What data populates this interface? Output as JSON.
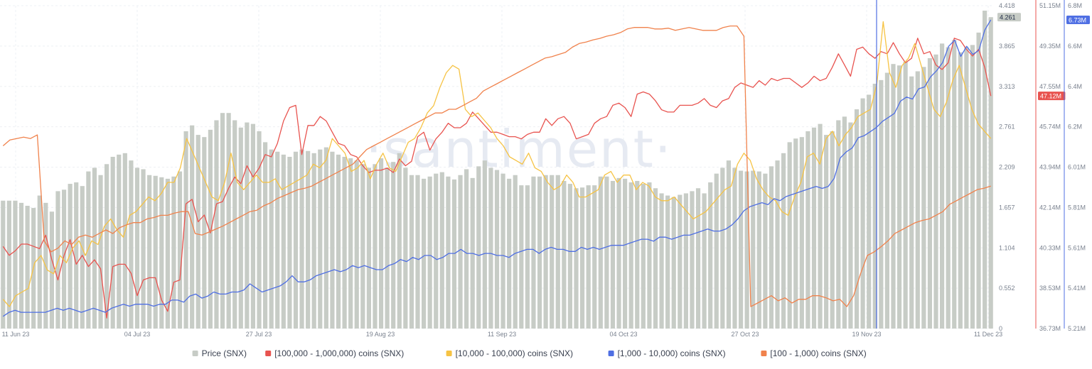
{
  "chart_data": {
    "type": "bar+line",
    "watermark": "·santiment·",
    "x_labels": [
      "11 Jun 23",
      "04 Jul 23",
      "27 Jul 23",
      "19 Aug 23",
      "11 Sep 23",
      "04 Oct 23",
      "27 Oct 23",
      "19 Nov 23",
      "11 Dec 23"
    ],
    "axes": {
      "price": {
        "min": 0,
        "max": 4.418,
        "ticks": [
          "4.418",
          "3.865",
          "3.313",
          "2.761",
          "2.209",
          "1.657",
          "1.104",
          "0.552",
          "0"
        ],
        "color": "#5d6470",
        "current": "4.261"
      },
      "holders_100k_1m": {
        "min": 36.73,
        "max": 51.15,
        "ticks": [
          "51.15M",
          "49.35M",
          "47.55M",
          "45.74M",
          "43.94M",
          "42.14M",
          "40.33M",
          "38.53M",
          "36.73M"
        ],
        "color": "#e8534f",
        "current": "47.12M"
      },
      "holders_1k_10k": {
        "min": 5.21,
        "max": 6.8,
        "ticks": [
          "6.8M",
          "6.6M",
          "6.4M",
          "6.2M",
          "6.01M",
          "5.81M",
          "5.61M",
          "5.41M",
          "5.21M"
        ],
        "color": "#4f6fe3",
        "current": "6.73M"
      }
    },
    "series": [
      {
        "name": "Price (SNX)",
        "kind": "bar",
        "color": "#c7ccc6",
        "axis": "price",
        "values": [
          1.75,
          1.75,
          1.75,
          1.72,
          1.68,
          1.65,
          1.82,
          1.72,
          1.6,
          1.88,
          1.9,
          1.98,
          2.0,
          1.95,
          2.15,
          2.2,
          2.1,
          2.25,
          2.35,
          2.38,
          2.4,
          2.3,
          2.2,
          2.18,
          2.1,
          2.09,
          2.07,
          2.05,
          2.08,
          2.15,
          2.7,
          2.78,
          2.65,
          2.62,
          2.72,
          2.85,
          2.95,
          2.95,
          2.85,
          2.75,
          2.82,
          2.8,
          2.7,
          2.55,
          2.45,
          2.42,
          2.38,
          2.35,
          2.42,
          2.45,
          2.43,
          2.4,
          2.45,
          2.48,
          2.42,
          2.38,
          2.35,
          2.33,
          2.3,
          2.25,
          2.2,
          2.25,
          2.33,
          2.2,
          2.28,
          2.4,
          2.2,
          2.1,
          2.1,
          2.05,
          2.08,
          2.12,
          2.14,
          2.08,
          2.04,
          2.1,
          2.18,
          2.06,
          2.22,
          2.3,
          2.2,
          2.17,
          2.12,
          2.05,
          2.1,
          1.96,
          1.96,
          2.08,
          2.08,
          2.1,
          2.1,
          2.1,
          2.02,
          1.98,
          1.92,
          1.93,
          1.96,
          1.96,
          2.08,
          2.08,
          2.02,
          2.06,
          2.05,
          2.0,
          2.02,
          1.98,
          2.0,
          1.92,
          1.85,
          1.82,
          1.8,
          1.83,
          1.85,
          1.88,
          1.92,
          1.85,
          2.0,
          2.12,
          2.2,
          2.3,
          2.2,
          2.16,
          2.15,
          2.16,
          2.15,
          2.12,
          2.22,
          2.3,
          2.4,
          2.55,
          2.6,
          2.62,
          2.7,
          2.75,
          2.8,
          2.65,
          2.7,
          2.85,
          2.9,
          2.82,
          3.0,
          3.15,
          3.2,
          3.35,
          3.4,
          3.5,
          3.62,
          3.6,
          3.65,
          3.45,
          3.52,
          3.58,
          3.7,
          3.75,
          3.9,
          3.85,
          3.95,
          3.78,
          3.85,
          3.88,
          4.05,
          4.35,
          4.261
        ]
      },
      {
        "name": "[100,000  - 1,000,000) coins (SNX)",
        "kind": "line",
        "color": "#e8534f",
        "axis": "holders_100k_1m",
        "values": [
          40.4,
          40.0,
          40.2,
          40.5,
          40.5,
          40.4,
          40.3,
          40.9,
          39.8,
          38.9,
          40.0,
          40.7,
          39.6,
          40.0,
          39.5,
          39.8,
          39.4,
          37.2,
          39.5,
          39.6,
          39.6,
          39.2,
          38.2,
          38.9,
          39.0,
          39.0,
          38.0,
          37.5,
          38.8,
          38.9,
          42.3,
          42.5,
          41.5,
          41.8,
          41.0,
          42.3,
          42.4,
          43.0,
          43.5,
          43.2,
          44.0,
          43.5,
          43.9,
          44.5,
          44.4,
          45.0,
          46.0,
          46.6,
          46.7,
          44.5,
          45.8,
          45.8,
          46.2,
          46.0,
          45.5,
          45.0,
          44.9,
          44.5,
          44.4,
          44.0,
          43.7,
          43.8,
          43.8,
          43.9,
          43.7,
          44.3,
          44.0,
          44.2,
          45.3,
          45.5,
          44.7,
          45.2,
          45.5,
          45.9,
          45.7,
          45.7,
          45.9,
          46.4,
          46.1,
          45.8,
          45.5,
          45.5,
          45.4,
          45.3,
          45.3,
          45.2,
          45.4,
          45.5,
          45.5,
          46.1,
          45.8,
          46.1,
          46.2,
          45.9,
          45.2,
          45.3,
          45.4,
          45.9,
          46.1,
          46.2,
          46.7,
          46.8,
          46.6,
          46.2,
          47.2,
          47.3,
          47.2,
          46.9,
          46.5,
          46.4,
          46.4,
          46.7,
          46.7,
          46.7,
          46.8,
          47.0,
          46.7,
          46.6,
          46.9,
          47.0,
          47.5,
          47.7,
          47.6,
          47.5,
          47.8,
          47.6,
          47.9,
          47.8,
          47.9,
          47.9,
          47.7,
          47.5,
          47.7,
          48.0,
          47.8,
          47.9,
          48.4,
          49.0,
          48.5,
          48.0,
          49.2,
          49.3,
          49.0,
          48.8,
          49.1,
          49.0,
          49.5,
          49.0,
          48.6,
          48.8,
          49.7,
          49.0,
          49.1,
          48.5,
          48.3,
          48.6,
          49.7,
          49.6,
          49.2,
          48.9,
          49.2,
          48.4,
          47.12
        ]
      },
      {
        "name": "[10,000 - 100,000) coins (SNX)",
        "kind": "line",
        "color": "#f6c344",
        "axis": "price",
        "values": [
          0.4,
          0.3,
          0.45,
          0.5,
          0.55,
          0.9,
          1.0,
          0.8,
          0.75,
          1.0,
          0.9,
          1.1,
          1.2,
          1.0,
          1.2,
          1.15,
          1.4,
          1.5,
          1.35,
          1.25,
          1.55,
          1.6,
          1.7,
          1.8,
          1.75,
          1.85,
          2.0,
          2.0,
          2.2,
          2.6,
          2.4,
          2.2,
          2.0,
          1.8,
          1.75,
          2.0,
          2.4,
          2.0,
          1.9,
          2.0,
          2.1,
          2.0,
          2.0,
          2.05,
          1.9,
          1.95,
          2.0,
          2.05,
          2.1,
          2.25,
          2.2,
          2.3,
          2.6,
          2.5,
          2.4,
          2.15,
          2.2,
          2.3,
          2.05,
          2.25,
          2.4,
          2.2,
          2.15,
          2.35,
          2.55,
          2.6,
          2.75,
          2.95,
          3.05,
          3.3,
          3.5,
          3.6,
          3.55,
          3.0,
          2.9,
          2.95,
          2.85,
          2.75,
          2.6,
          2.5,
          2.35,
          2.3,
          2.25,
          2.4,
          2.2,
          2.15,
          2.0,
          1.9,
          1.95,
          2.1,
          2.0,
          1.8,
          1.8,
          1.85,
          1.9,
          2.1,
          2.15,
          2.0,
          2.1,
          2.1,
          1.9,
          2.0,
          1.95,
          1.8,
          1.75,
          1.75,
          1.8,
          1.7,
          1.6,
          1.5,
          1.55,
          1.6,
          1.7,
          1.8,
          1.9,
          1.95,
          2.25,
          2.4,
          2.3,
          2.05,
          1.9,
          1.8,
          1.75,
          1.6,
          1.55,
          1.8,
          2.0,
          2.35,
          2.4,
          2.25,
          2.6,
          2.7,
          2.5,
          2.65,
          2.75,
          2.9,
          2.95,
          3.0,
          3.35,
          4.2,
          3.5,
          3.3,
          3.6,
          3.7,
          3.9,
          3.6,
          3.3,
          3.0,
          2.9,
          3.1,
          3.4,
          3.6,
          3.3,
          3.0,
          2.8,
          2.7,
          2.6
        ]
      },
      {
        "name": "[1,000 - 10,000) coins (SNX)",
        "kind": "line",
        "color": "#4f6fe3",
        "axis": "holders_1k_10k",
        "values": [
          5.27,
          5.29,
          5.3,
          5.29,
          5.29,
          5.29,
          5.29,
          5.29,
          5.3,
          5.31,
          5.3,
          5.31,
          5.3,
          5.29,
          5.3,
          5.31,
          5.3,
          5.29,
          5.31,
          5.32,
          5.33,
          5.32,
          5.33,
          5.33,
          5.33,
          5.32,
          5.33,
          5.33,
          5.35,
          5.35,
          5.34,
          5.37,
          5.38,
          5.36,
          5.37,
          5.39,
          5.38,
          5.38,
          5.39,
          5.39,
          5.4,
          5.43,
          5.41,
          5.39,
          5.4,
          5.41,
          5.42,
          5.44,
          5.47,
          5.44,
          5.44,
          5.45,
          5.47,
          5.48,
          5.49,
          5.5,
          5.49,
          5.5,
          5.52,
          5.51,
          5.52,
          5.51,
          5.5,
          5.5,
          5.52,
          5.53,
          5.55,
          5.54,
          5.56,
          5.55,
          5.57,
          5.57,
          5.55,
          5.56,
          5.58,
          5.58,
          5.6,
          5.58,
          5.58,
          5.57,
          5.58,
          5.58,
          5.57,
          5.57,
          5.56,
          5.58,
          5.59,
          5.6,
          5.6,
          5.58,
          5.6,
          5.61,
          5.6,
          5.6,
          5.59,
          5.59,
          5.61,
          5.6,
          5.61,
          5.6,
          5.61,
          5.62,
          5.62,
          5.62,
          5.63,
          5.64,
          5.65,
          5.65,
          5.64,
          5.66,
          5.66,
          5.65,
          5.66,
          5.67,
          5.67,
          5.68,
          5.69,
          5.7,
          5.69,
          5.69,
          5.7,
          5.72,
          5.75,
          5.79,
          5.81,
          5.82,
          5.83,
          5.82,
          5.85,
          5.84,
          5.86,
          5.87,
          5.88,
          5.89,
          5.9,
          5.91,
          5.9,
          5.91,
          5.95,
          6.05,
          6.08,
          6.1,
          6.15,
          6.16,
          6.18,
          6.2,
          6.23,
          6.25,
          6.27,
          6.33,
          6.35,
          6.34,
          6.39,
          6.4,
          6.45,
          6.48,
          6.52,
          6.6,
          6.63,
          6.55,
          6.6,
          6.56,
          6.58,
          6.68,
          6.73
        ]
      },
      {
        "name": "[100 - 1,000) coins (SNX)",
        "kind": "line",
        "color": "#f0824c",
        "axis": "price",
        "values": [
          2.5,
          2.58,
          2.6,
          2.62,
          2.6,
          2.65,
          1.2,
          1.05,
          1.1,
          1.2,
          1.15,
          1.25,
          1.28,
          1.25,
          1.3,
          1.35,
          1.3,
          1.38,
          1.42,
          1.45,
          1.45,
          1.5,
          1.52,
          1.55,
          1.55,
          1.58,
          1.6,
          1.6,
          1.3,
          1.28,
          1.32,
          1.36,
          1.4,
          1.45,
          1.5,
          1.55,
          1.6,
          1.62,
          1.68,
          1.72,
          1.78,
          1.82,
          1.86,
          1.9,
          1.92,
          1.95,
          2.0,
          2.05,
          2.1,
          2.15,
          2.2,
          2.25,
          2.35,
          2.45,
          2.5,
          2.55,
          2.6,
          2.65,
          2.7,
          2.75,
          2.8,
          2.85,
          2.9,
          2.95,
          2.95,
          3.0,
          3.0,
          3.05,
          3.1,
          3.15,
          3.25,
          3.3,
          3.35,
          3.4,
          3.45,
          3.5,
          3.55,
          3.6,
          3.65,
          3.7,
          3.72,
          3.75,
          3.78,
          3.85,
          3.9,
          3.92,
          3.95,
          3.97,
          4.0,
          4.02,
          4.05,
          4.1,
          4.12,
          4.12,
          4.12,
          4.1,
          4.1,
          4.11,
          4.08,
          4.1,
          4.12,
          4.1,
          4.08,
          4.08,
          4.08,
          4.12,
          4.14,
          4.14,
          4.0,
          0.3,
          0.35,
          0.4,
          0.45,
          0.38,
          0.42,
          0.35,
          0.4,
          0.4,
          0.45,
          0.45,
          0.42,
          0.38,
          0.4,
          0.3,
          0.45,
          0.75,
          1.0,
          1.05,
          1.12,
          1.2,
          1.3,
          1.35,
          1.4,
          1.45,
          1.48,
          1.5,
          1.55,
          1.6,
          1.7,
          1.75,
          1.8,
          1.85,
          1.9,
          1.92,
          1.95
        ]
      }
    ],
    "legend_position": "bottom-center",
    "highlight_date": "19 Nov 23"
  }
}
